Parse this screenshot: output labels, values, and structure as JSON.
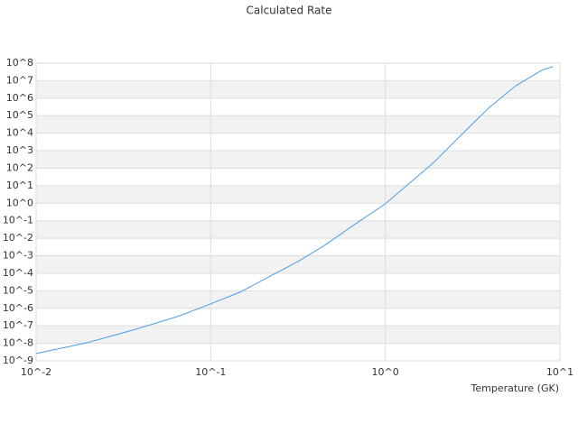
{
  "chart_data": {
    "type": "line",
    "title": "Calculated Rate",
    "x_label": "Temperature (GK)",
    "log_x": true,
    "log_y": true,
    "grid": true,
    "band_color": "#f2f2f2",
    "grid_color": "#dddddd",
    "xlim": [
      0.01,
      10
    ],
    "ylim": [
      1e-09,
      100000000.0
    ],
    "xticks": [
      {
        "value": 0.01,
        "label": "10^-2"
      },
      {
        "value": 0.1,
        "label": "10^-1"
      },
      {
        "value": 1,
        "label": "10^0"
      },
      {
        "value": 10,
        "label": "10^1"
      }
    ],
    "yticks": [
      {
        "value": 1e-09,
        "label": "10^-9"
      },
      {
        "value": 1e-08,
        "label": "10^-8"
      },
      {
        "value": 1e-07,
        "label": "10^-7"
      },
      {
        "value": 1e-06,
        "label": "10^-6"
      },
      {
        "value": 1e-05,
        "label": "10^-5"
      },
      {
        "value": 0.0001,
        "label": "10^-4"
      },
      {
        "value": 0.001,
        "label": "10^-3"
      },
      {
        "value": 0.01,
        "label": "10^-2"
      },
      {
        "value": 0.1,
        "label": "10^-1"
      },
      {
        "value": 1,
        "label": "10^0"
      },
      {
        "value": 10,
        "label": "10^1"
      },
      {
        "value": 100,
        "label": "10^2"
      },
      {
        "value": 1000,
        "label": "10^3"
      },
      {
        "value": 10000,
        "label": "10^4"
      },
      {
        "value": 100000,
        "label": "10^5"
      },
      {
        "value": 1000000,
        "label": "10^6"
      },
      {
        "value": 10000000,
        "label": "10^7"
      },
      {
        "value": 100000000,
        "label": "10^8"
      }
    ],
    "x": [
      0.01,
      0.0197,
      0.037,
      0.067,
      0.1,
      0.147,
      0.22,
      0.316,
      0.45,
      0.68,
      1,
      1.5,
      1.9,
      2.72,
      3.9,
      5.6,
      7.9,
      9.1
    ],
    "series": [
      {
        "color": "#4a9de8",
        "values": [
          2.6e-09,
          1.1e-08,
          6.3e-08,
          3.8e-07,
          1.8e-06,
          8.3e-06,
          7e-05,
          0.00047,
          0.004,
          0.07,
          0.93,
          29,
          220,
          7900,
          270000,
          5200000,
          40000000,
          63000000
        ]
      }
    ]
  }
}
